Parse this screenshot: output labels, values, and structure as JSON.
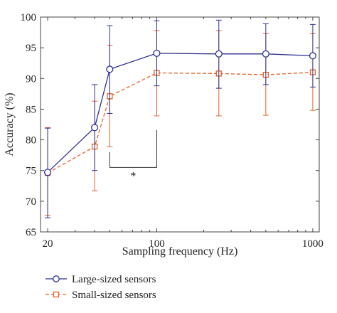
{
  "chart_data": {
    "type": "line",
    "xlabel": "Sampling frequency (Hz)",
    "ylabel": "Accuracy (%)",
    "xscale": "log",
    "xlim": [
      18,
      1100
    ],
    "ylim": [
      65,
      100
    ],
    "x_ticks": [
      20,
      100,
      1000
    ],
    "x_tick_labels": [
      "20",
      "100",
      "1000"
    ],
    "y_ticks": [
      65,
      70,
      75,
      80,
      85,
      90,
      95,
      100
    ],
    "y_tick_labels": [
      "65",
      "70",
      "75",
      "80",
      "85",
      "90",
      "95",
      "100"
    ],
    "grid": false,
    "legend_position": "bottom-left, below plot",
    "annotation": "*",
    "significance_bracket": {
      "x": [
        50,
        100
      ],
      "y": 75.5
    },
    "series": [
      {
        "name": "Large-sized sensors",
        "color": "#2f3194",
        "marker": "circle",
        "linestyle": "solid",
        "x": [
          20,
          40,
          50,
          100,
          250,
          500,
          1000
        ],
        "y": [
          74.7,
          82.0,
          91.5,
          94.1,
          94.0,
          94.0,
          93.7
        ],
        "err_low": [
          67.3,
          75.0,
          84.3,
          88.8,
          88.4,
          89.0,
          88.6
        ],
        "err_high": [
          81.9,
          89.0,
          98.6,
          99.4,
          99.5,
          98.9,
          98.8
        ]
      },
      {
        "name": "Small-sized sensors",
        "color": "#e2622a",
        "marker": "square",
        "linestyle": "dashed",
        "x": [
          20,
          40,
          50,
          100,
          250,
          500,
          1000
        ],
        "y": [
          74.6,
          78.9,
          87.1,
          90.9,
          90.8,
          90.6,
          91.0
        ],
        "err_low": [
          67.7,
          71.7,
          78.9,
          83.9,
          83.9,
          84.0,
          84.8
        ],
        "err_high": [
          82.0,
          86.3,
          95.4,
          97.8,
          97.8,
          97.3,
          97.3
        ]
      }
    ]
  }
}
